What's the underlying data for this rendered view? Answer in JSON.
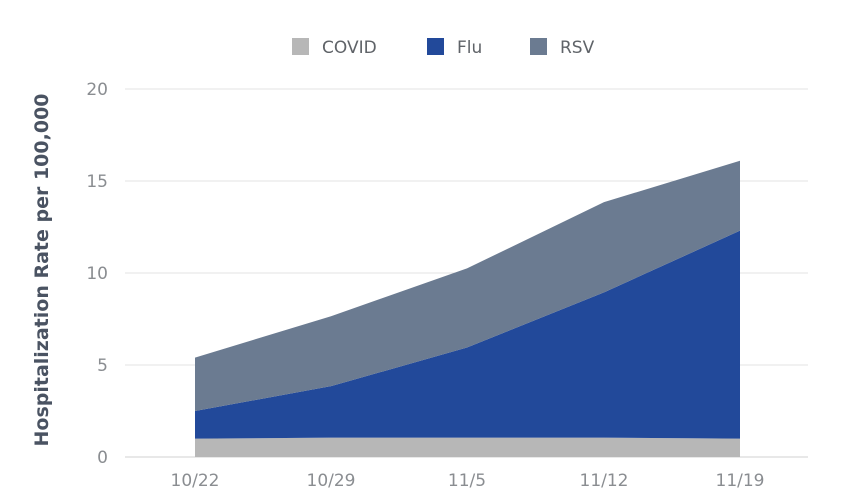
{
  "chart_data": {
    "type": "area",
    "stacked": true,
    "ylabel": "Hospitalization Rate per 100,000",
    "xlabel": "",
    "ylim": [
      0,
      20
    ],
    "y_ticks": [
      0,
      5,
      10,
      15,
      20
    ],
    "x_tick_labels": [
      "10/22",
      "10/29",
      "11/5",
      "11/12",
      "11/19"
    ],
    "x": [
      "10/22",
      "10/29",
      "11/5",
      "11/12",
      "11/19"
    ],
    "grid": true,
    "legend_position": "top-center",
    "series": [
      {
        "name": "COVID",
        "color": "#b7b7b7",
        "values": [
          1.0,
          1.05,
          1.05,
          1.05,
          1.0
        ]
      },
      {
        "name": "Flu",
        "color": "#22499a",
        "values": [
          1.5,
          2.8,
          4.9,
          7.9,
          11.3
        ]
      },
      {
        "name": "RSV",
        "color": "#6b7b91",
        "values": [
          2.9,
          3.8,
          4.3,
          4.9,
          3.8
        ]
      }
    ]
  }
}
